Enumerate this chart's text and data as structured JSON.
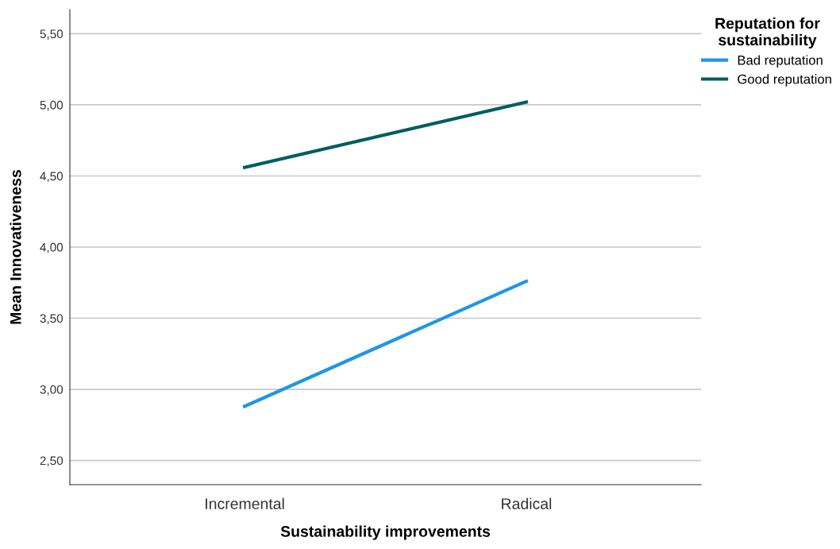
{
  "chart_data": {
    "type": "line",
    "xlabel": "Sustainability improvements",
    "ylabel": "Mean Innovativeness",
    "legend_title": "Reputation for\nsustainability",
    "categories": [
      "Incremental",
      "Radical"
    ],
    "series": [
      {
        "name": "Bad reputation",
        "color": "#1f96e8",
        "values": [
          2.88,
          3.76
        ]
      },
      {
        "name": "Good reputation",
        "color": "#005e5e",
        "values": [
          4.56,
          5.02
        ]
      }
    ],
    "ylim": [
      2.33,
      5.67
    ],
    "yticks": [
      {
        "value": 2.5,
        "label": "2,50"
      },
      {
        "value": 3.0,
        "label": "3,00"
      },
      {
        "value": 3.5,
        "label": "3,50"
      },
      {
        "value": 4.0,
        "label": "4,00"
      },
      {
        "value": 4.5,
        "label": "4,50"
      },
      {
        "value": 5.0,
        "label": "5,00"
      },
      {
        "value": 5.5,
        "label": "5,50"
      }
    ],
    "grid": "y",
    "legend": "top right",
    "marker": "none",
    "line_style": "solid"
  }
}
